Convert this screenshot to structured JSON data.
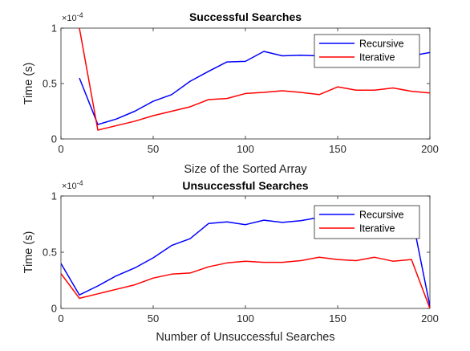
{
  "chart_data": [
    {
      "type": "line",
      "title": "Successful Searches",
      "xlabel": "Size of the Sorted Array",
      "ylabel": "Time (s)",
      "y_exponent": "×10",
      "y_exponent_power": "-4",
      "xlim": [
        0,
        200
      ],
      "ylim": [
        0,
        1
      ],
      "xticks": [
        "0",
        "50",
        "100",
        "150",
        "200"
      ],
      "yticks": [
        "0",
        "0.5",
        "1"
      ],
      "legend_position": "top-right",
      "grid": false,
      "series": [
        {
          "name": "Recursive",
          "color": "#0000ff",
          "x": [
            10,
            20,
            30,
            40,
            50,
            60,
            70,
            80,
            90,
            100,
            110,
            120,
            130,
            140,
            150,
            160,
            170,
            180,
            190,
            200
          ],
          "y": [
            0.55,
            0.13,
            0.18,
            0.25,
            0.34,
            0.4,
            0.52,
            0.61,
            0.695,
            0.7,
            0.79,
            0.75,
            0.755,
            0.75,
            0.75,
            0.76,
            0.76,
            0.76,
            0.75,
            0.78
          ]
        },
        {
          "name": "Iterative",
          "color": "#ff0000",
          "x": [
            10,
            20,
            30,
            40,
            50,
            60,
            70,
            80,
            90,
            100,
            110,
            120,
            130,
            140,
            150,
            160,
            170,
            180,
            190,
            200
          ],
          "y": [
            1.0,
            0.08,
            0.12,
            0.16,
            0.21,
            0.25,
            0.29,
            0.355,
            0.365,
            0.41,
            0.42,
            0.435,
            0.42,
            0.4,
            0.47,
            0.44,
            0.44,
            0.46,
            0.43,
            0.415
          ]
        }
      ]
    },
    {
      "type": "line",
      "title": "Unsuccessful Searches",
      "xlabel": "Number of Unsuccessful Searches",
      "ylabel": "Time (s)",
      "y_exponent": "×10",
      "y_exponent_power": "-4",
      "xlim": [
        0,
        200
      ],
      "ylim": [
        0,
        1
      ],
      "xticks": [
        "0",
        "50",
        "100",
        "150",
        "200"
      ],
      "yticks": [
        "0",
        "0.5",
        "1"
      ],
      "legend_position": "top-right",
      "grid": false,
      "series": [
        {
          "name": "Recursive",
          "color": "#0000ff",
          "x": [
            0,
            10,
            20,
            30,
            40,
            50,
            60,
            70,
            80,
            90,
            100,
            110,
            120,
            130,
            140,
            150,
            160,
            170,
            180,
            190,
            200
          ],
          "y": [
            0.4,
            0.12,
            0.2,
            0.29,
            0.36,
            0.45,
            0.56,
            0.62,
            0.755,
            0.77,
            0.745,
            0.785,
            0.765,
            0.78,
            0.81,
            0.83,
            0.84,
            0.85,
            0.85,
            0.84,
            0.02
          ]
        },
        {
          "name": "Iterative",
          "color": "#ff0000",
          "x": [
            0,
            10,
            20,
            30,
            40,
            50,
            60,
            70,
            80,
            90,
            100,
            110,
            120,
            130,
            140,
            150,
            160,
            170,
            180,
            190,
            200
          ],
          "y": [
            0.31,
            0.09,
            0.13,
            0.17,
            0.21,
            0.27,
            0.305,
            0.315,
            0.37,
            0.405,
            0.42,
            0.41,
            0.41,
            0.425,
            0.455,
            0.435,
            0.425,
            0.455,
            0.42,
            0.435,
            0.0
          ]
        }
      ]
    }
  ]
}
